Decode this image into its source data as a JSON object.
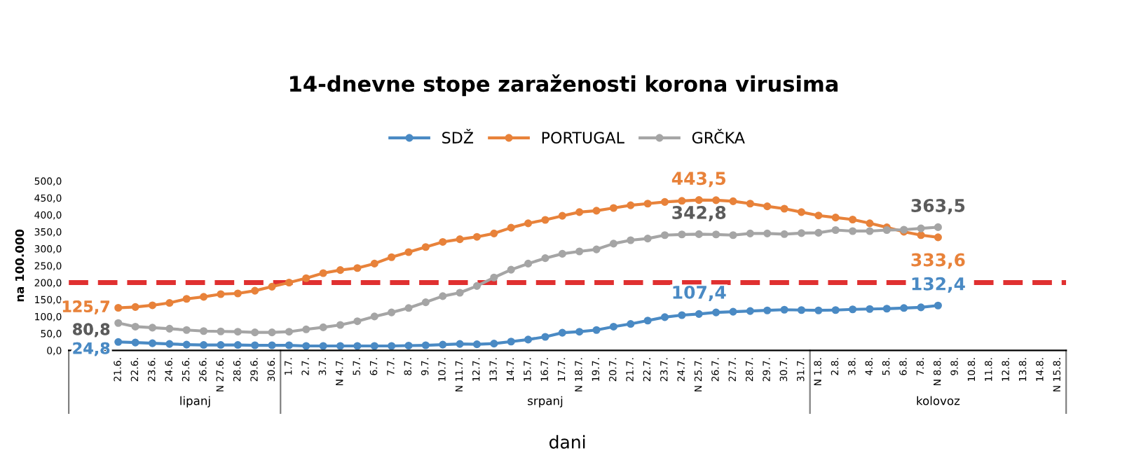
{
  "chart_data": {
    "type": "line",
    "title": "14-dnevne stope zaraženosti korona virusima",
    "xlabel": "dani",
    "ylabel": "na 100.000",
    "categories": [
      "21.6.",
      "22.6.",
      "23.6.",
      "24.6.",
      "25.6.",
      "26.6.",
      "N 27.6.",
      "28.6.",
      "29.6.",
      "30.6.",
      "1.7.",
      "2.7.",
      "3.7.",
      "N 4.7.",
      "5.7.",
      "6.7.",
      "7.7.",
      "8.7.",
      "9.7.",
      "10.7.",
      "N 11.7.",
      "12.7.",
      "13.7.",
      "14.7.",
      "15.7.",
      "16.7.",
      "17.7.",
      "N 18.7.",
      "19.7.",
      "20.7.",
      "21.7.",
      "22.7.",
      "23.7.",
      "24.7.",
      "N 25.7.",
      "26.7.",
      "27.7.",
      "28.7.",
      "29.7.",
      "30.7.",
      "31.7.",
      "N 1.8.",
      "2.8.",
      "3.8.",
      "4.8.",
      "5.8.",
      "6.8.",
      "7.8.",
      "N 8.8.",
      "9.8.",
      "10.8.",
      "11.8.",
      "12.8.",
      "13.8.",
      "14.8.",
      "N 15.8."
    ],
    "series": [
      {
        "name": "SDŽ",
        "color": "#4a8ac4",
        "values": [
          24.8,
          23,
          21,
          19,
          17,
          16,
          16,
          16,
          15,
          15,
          15,
          13,
          13,
          13,
          13,
          13,
          13,
          14,
          15,
          17,
          19,
          18,
          20,
          26,
          32,
          40,
          52,
          55,
          60,
          70,
          78,
          88,
          98,
          104,
          107.4,
          112,
          114,
          116,
          118,
          120,
          119,
          118,
          119,
          121,
          122,
          123,
          125,
          127,
          132.4,
          null,
          null,
          null,
          null,
          null,
          null,
          null
        ],
        "value_labels": [
          "24,8",
          null,
          null,
          null,
          null,
          null,
          null,
          null,
          null,
          null,
          null,
          null,
          null,
          null,
          null,
          null,
          null,
          null,
          null,
          null,
          null,
          null,
          null,
          null,
          null,
          null,
          null,
          null,
          null,
          null,
          null,
          null,
          null,
          null,
          "107,4",
          null,
          null,
          null,
          null,
          null,
          null,
          null,
          null,
          null,
          null,
          null,
          null,
          null,
          "132,4",
          null,
          null,
          null,
          null,
          null,
          null,
          null
        ]
      },
      {
        "name": "PORTUGAL",
        "color": "#e8823a",
        "values": [
          125.7,
          128,
          133,
          140,
          152,
          158,
          166,
          168,
          176,
          188,
          200,
          213,
          228,
          237,
          243,
          256,
          275,
          290,
          305,
          320,
          328,
          335,
          345,
          362,
          375,
          385,
          397,
          408,
          412,
          420,
          428,
          433,
          438,
          441,
          443.5,
          443,
          440,
          433,
          425,
          418,
          408,
          398,
          392,
          386,
          375,
          363,
          350,
          340,
          333.6,
          null,
          null,
          null,
          null,
          null,
          null,
          null
        ],
        "value_labels": [
          "125,7",
          null,
          null,
          null,
          null,
          null,
          null,
          null,
          null,
          null,
          null,
          null,
          null,
          null,
          null,
          null,
          null,
          null,
          null,
          null,
          null,
          null,
          null,
          null,
          null,
          null,
          null,
          null,
          null,
          null,
          null,
          null,
          null,
          null,
          "443,5",
          null,
          null,
          null,
          null,
          null,
          null,
          null,
          null,
          null,
          null,
          null,
          null,
          null,
          "333,6",
          null,
          null,
          null,
          null,
          null,
          null,
          null
        ]
      },
      {
        "name": "GRČKA",
        "color": "#a5a5a5",
        "values": [
          80.8,
          70,
          67,
          64,
          60,
          57,
          56,
          55,
          53,
          53,
          55,
          62,
          68,
          75,
          86,
          100,
          112,
          125,
          142,
          160,
          170,
          190,
          215,
          238,
          256,
          272,
          285,
          292,
          298,
          315,
          325,
          330,
          340,
          342,
          342.8,
          342,
          340,
          345,
          345,
          343,
          346,
          347,
          355,
          352,
          352,
          355,
          356,
          360,
          363.5,
          null,
          null,
          null,
          null,
          null,
          null,
          null
        ],
        "value_labels": [
          "80,8",
          null,
          null,
          null,
          null,
          null,
          null,
          null,
          null,
          null,
          null,
          null,
          null,
          null,
          null,
          null,
          null,
          null,
          null,
          null,
          null,
          null,
          null,
          null,
          null,
          null,
          null,
          null,
          null,
          null,
          null,
          null,
          null,
          null,
          "342,8",
          null,
          null,
          null,
          null,
          null,
          null,
          null,
          null,
          null,
          null,
          null,
          null,
          null,
          "363,5",
          null,
          null,
          null,
          null,
          null,
          null,
          null
        ]
      }
    ],
    "ylim": [
      0,
      500
    ],
    "yticks": [
      {
        "value": 0,
        "label": "0,0"
      },
      {
        "value": 50,
        "label": "50,0"
      },
      {
        "value": 100,
        "label": "100,0"
      },
      {
        "value": 150,
        "label": "150,0"
      },
      {
        "value": 200,
        "label": "200,0"
      },
      {
        "value": 250,
        "label": "250,0"
      },
      {
        "value": 300,
        "label": "300,0"
      },
      {
        "value": 350,
        "label": "350,0"
      },
      {
        "value": 400,
        "label": "400,0"
      },
      {
        "value": 450,
        "label": "450,0"
      },
      {
        "value": 500,
        "label": "500,0"
      }
    ],
    "ref_lines": [
      {
        "axis": "y",
        "value": 200,
        "color": "#e03030",
        "line_style": "dashed"
      }
    ],
    "annotations": [
      "lipanj",
      "srpanj",
      "kolovoz"
    ],
    "marker": "circle",
    "line_style": "solid",
    "grid": false,
    "legend": "top"
  }
}
